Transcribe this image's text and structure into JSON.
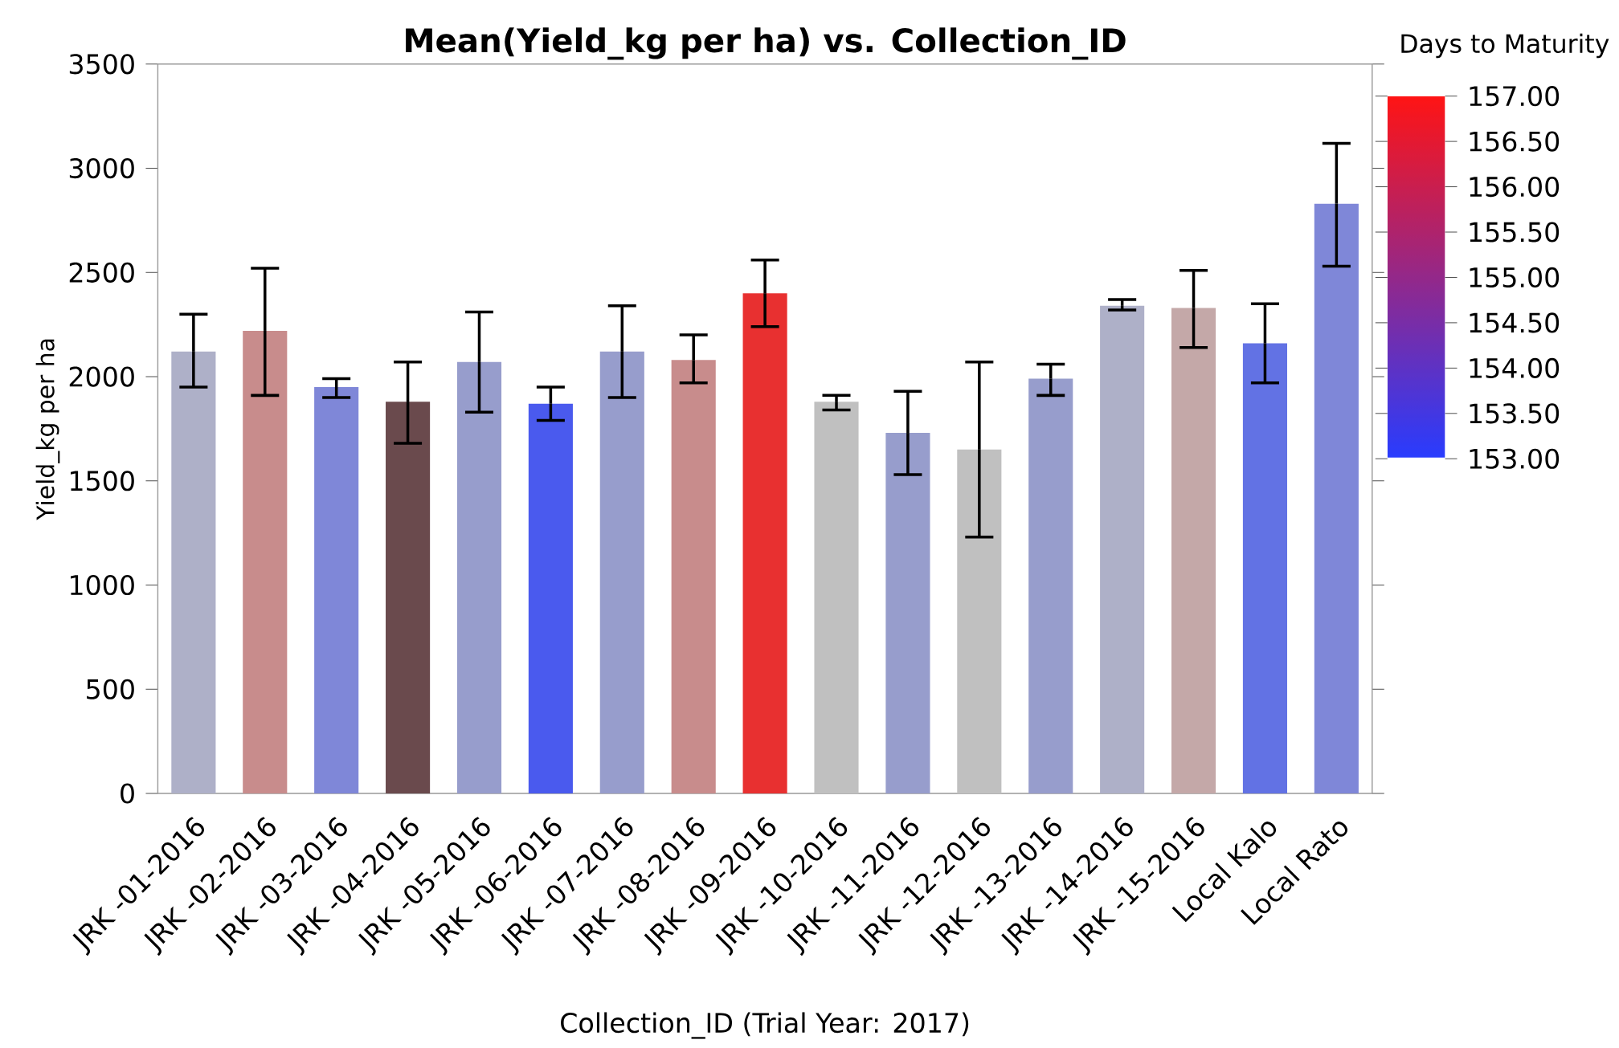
{
  "chart_data": {
    "type": "bar",
    "title": "Mean(Yield_kg per ha) vs. Collection_ID",
    "xlabel": "Collection_ID (Trial Year: 2017)",
    "ylabel": "Yield_kg per ha",
    "clabel": "Days to Maturity",
    "categories": [
      "JRK -01-2016",
      "JRK -02-2016",
      "JRK -03-2016",
      "JRK -04-2016",
      "JRK -05-2016",
      "JRK -06-2016",
      "JRK -07-2016",
      "JRK -08-2016",
      "JRK -09-2016",
      "JRK -10-2016",
      "JRK -11-2016",
      "JRK -12-2016",
      "JRK -13-2016",
      "JRK -14-2016",
      "JRK -15-2016",
      "Local Kalo",
      "Local Rato"
    ],
    "values": [
      2120,
      2220,
      1950,
      1880,
      2070,
      1870,
      2120,
      2080,
      2400,
      1880,
      1730,
      1650,
      1990,
      2340,
      2330,
      2160,
      2830
    ],
    "errors": [
      [
        1950,
        2300
      ],
      [
        1910,
        2520
      ],
      [
        1900,
        1990
      ],
      [
        1680,
        2070
      ],
      [
        1830,
        2310
      ],
      [
        1790,
        1950
      ],
      [
        1900,
        2340
      ],
      [
        1970,
        2200
      ],
      [
        2240,
        2560
      ],
      [
        1840,
        1910
      ],
      [
        1530,
        1930
      ],
      [
        1230,
        2070
      ],
      [
        1910,
        2060
      ],
      [
        2320,
        2370
      ],
      [
        2140,
        2510
      ],
      [
        1970,
        2350
      ],
      [
        2530,
        3120
      ]
    ],
    "colors": [
      "#aeb0c8",
      "#c88c8c",
      "#7f87d8",
      "#6a4a4d",
      "#979dcc",
      "#4a5aee",
      "#979dcc",
      "#c88c8c",
      "#e83030",
      "#c0c0c0",
      "#979dcc",
      "#c0c0c0",
      "#979dcc",
      "#aeb0c8",
      "#c4a8a8",
      "#6272e4",
      "#7f87d8"
    ],
    "ylim": [
      0,
      3500
    ],
    "yticks": [
      0,
      500,
      1000,
      1500,
      2000,
      2500,
      3000,
      3500
    ],
    "clim": [
      153,
      157
    ],
    "cticks": [
      {
        "value": 153,
        "label": "153.00"
      },
      {
        "value": 153.5,
        "label": "153.50"
      },
      {
        "value": 154,
        "label": "154.00"
      },
      {
        "value": 154.5,
        "label": "154.50"
      },
      {
        "value": 155,
        "label": "155.00"
      },
      {
        "value": 155.5,
        "label": "155.50"
      },
      {
        "value": 156,
        "label": "156.00"
      },
      {
        "value": 156.5,
        "label": "156.50"
      },
      {
        "value": 157,
        "label": "157.00"
      }
    ]
  }
}
